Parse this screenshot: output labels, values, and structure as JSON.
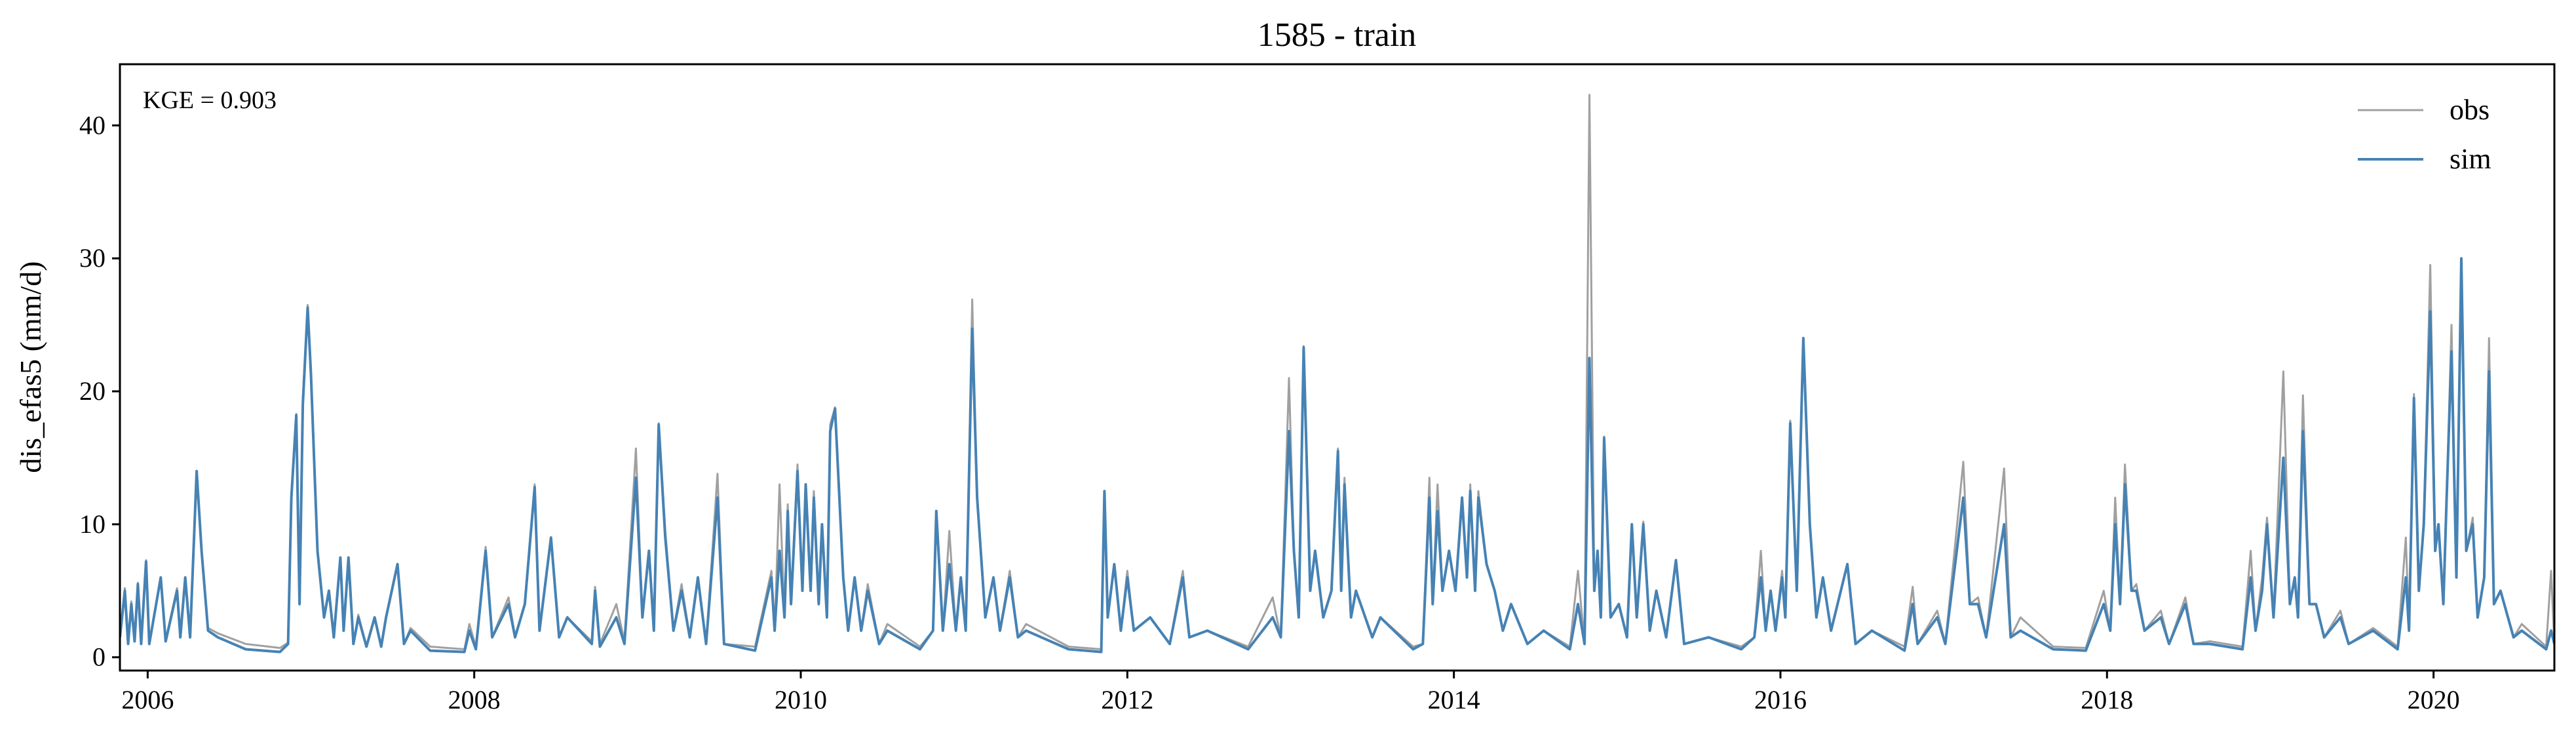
{
  "chart_data": {
    "type": "line",
    "title": "1585 - train",
    "ylabel": "dis_efas5 (mm/d)",
    "annotation": "KGE = 0.903",
    "legend": "upper right",
    "xlim": [
      2005.83,
      2020.74
    ],
    "xticks": [
      2006,
      2008,
      2010,
      2012,
      2014,
      2016,
      2018,
      2020
    ],
    "ylim": [
      -1,
      44.6
    ],
    "yticks": [
      0,
      10,
      20,
      30,
      40
    ],
    "x": [
      2005.83,
      2005.86,
      2005.88,
      2005.9,
      2005.92,
      2005.94,
      2005.96,
      2005.99,
      2006.01,
      2006.08,
      2006.11,
      2006.18,
      2006.2,
      2006.23,
      2006.26,
      2006.3,
      2006.33,
      2006.37,
      2006.43,
      2006.6,
      2006.81,
      2006.86,
      2006.88,
      2006.91,
      2006.93,
      2006.95,
      2006.98,
      2007.0,
      2007.04,
      2007.08,
      2007.11,
      2007.14,
      2007.18,
      2007.2,
      2007.23,
      2007.26,
      2007.29,
      2007.34,
      2007.39,
      2007.43,
      2007.46,
      2007.53,
      2007.57,
      2007.61,
      2007.73,
      2007.94,
      2007.97,
      2008.01,
      2008.07,
      2008.11,
      2008.21,
      2008.25,
      2008.31,
      2008.37,
      2008.4,
      2008.47,
      2008.52,
      2008.57,
      2008.72,
      2008.74,
      2008.77,
      2008.87,
      2008.92,
      2008.99,
      2009.03,
      2009.07,
      2009.1,
      2009.13,
      2009.17,
      2009.22,
      2009.27,
      2009.32,
      2009.37,
      2009.42,
      2009.49,
      2009.53,
      2009.72,
      2009.82,
      2009.84,
      2009.87,
      2009.9,
      2009.92,
      2009.94,
      2009.98,
      2010.01,
      2010.03,
      2010.06,
      2010.08,
      2010.11,
      2010.13,
      2010.16,
      2010.18,
      2010.21,
      2010.26,
      2010.29,
      2010.33,
      2010.37,
      2010.41,
      2010.48,
      2010.53,
      2010.73,
      2010.81,
      2010.83,
      2010.87,
      2010.91,
      2010.95,
      2010.98,
      2011.01,
      2011.05,
      2011.08,
      2011.13,
      2011.18,
      2011.22,
      2011.28,
      2011.33,
      2011.38,
      2011.64,
      2011.84,
      2011.86,
      2011.88,
      2011.92,
      2011.96,
      2012.0,
      2012.04,
      2012.14,
      2012.26,
      2012.34,
      2012.38,
      2012.49,
      2012.74,
      2012.89,
      2012.94,
      2012.99,
      2013.02,
      2013.05,
      2013.08,
      2013.12,
      2013.15,
      2013.2,
      2013.25,
      2013.29,
      2013.31,
      2013.33,
      2013.37,
      2013.4,
      2013.5,
      2013.55,
      2013.75,
      2013.81,
      2013.85,
      2013.87,
      2013.9,
      2013.93,
      2013.97,
      2014.01,
      2014.05,
      2014.08,
      2014.1,
      2014.13,
      2014.15,
      2014.2,
      2014.25,
      2014.3,
      2014.35,
      2014.45,
      2014.55,
      2014.71,
      2014.76,
      2014.8,
      2014.83,
      2014.86,
      2014.88,
      2014.9,
      2014.92,
      2014.96,
      2015.01,
      2015.06,
      2015.09,
      2015.12,
      2015.16,
      2015.2,
      2015.24,
      2015.3,
      2015.36,
      2015.41,
      2015.56,
      2015.76,
      2015.84,
      2015.88,
      2015.91,
      2015.94,
      2015.97,
      2016.01,
      2016.03,
      2016.06,
      2016.1,
      2016.14,
      2016.18,
      2016.22,
      2016.26,
      2016.31,
      2016.41,
      2016.46,
      2016.56,
      2016.76,
      2016.81,
      2016.84,
      2016.96,
      2017.01,
      2017.12,
      2017.16,
      2017.21,
      2017.26,
      2017.37,
      2017.41,
      2017.47,
      2017.67,
      2017.87,
      2017.98,
      2018.02,
      2018.05,
      2018.08,
      2018.11,
      2018.15,
      2018.18,
      2018.23,
      2018.33,
      2018.38,
      2018.48,
      2018.53,
      2018.63,
      2018.83,
      2018.88,
      2018.91,
      2018.95,
      2018.98,
      2019.02,
      2019.08,
      2019.12,
      2019.15,
      2019.17,
      2019.2,
      2019.24,
      2019.28,
      2019.33,
      2019.43,
      2019.48,
      2019.63,
      2019.78,
      2019.83,
      2019.85,
      2019.88,
      2019.91,
      2019.94,
      2019.98,
      2020.01,
      2020.03,
      2020.06,
      2020.08,
      2020.11,
      2020.14,
      2020.17,
      2020.2,
      2020.24,
      2020.27,
      2020.31,
      2020.34,
      2020.37,
      2020.41,
      2020.49,
      2020.54,
      2020.69,
      2020.72,
      2020.74
    ],
    "series": [
      {
        "name": "obs",
        "color": "#a0a0a0",
        "values": [
          1.5,
          5.2,
          1,
          4.2,
          1.2,
          5.6,
          1,
          7.3,
          1,
          6,
          1.3,
          5.2,
          1.5,
          5.8,
          1.5,
          14,
          8,
          2.2,
          1.8,
          1,
          0.7,
          1.1,
          12.2,
          18.3,
          4,
          19.5,
          26.5,
          21.5,
          8,
          3,
          5,
          1.5,
          7.5,
          2,
          7.5,
          1,
          3.2,
          0.8,
          3,
          0.8,
          3,
          7,
          1,
          2.2,
          0.8,
          0.6,
          2.5,
          0.8,
          8.3,
          1.5,
          4.5,
          1.6,
          4,
          13,
          2,
          9,
          1.5,
          3,
          1.2,
          5.3,
          1,
          4,
          1.2,
          15.7,
          3,
          8,
          2,
          17.6,
          9.5,
          2,
          5.5,
          1.5,
          6,
          1,
          13.8,
          1,
          0.8,
          6.5,
          2,
          13,
          3,
          11.5,
          4,
          14.5,
          5,
          13,
          5,
          12.5,
          4,
          10,
          3,
          17.5,
          18.8,
          6,
          2,
          6,
          2,
          5.5,
          1,
          2.5,
          0.8,
          2,
          11,
          2,
          9.5,
          2,
          6,
          2,
          26.9,
          12,
          3,
          6,
          2,
          6.5,
          1.5,
          2.5,
          0.8,
          0.6,
          12.5,
          3,
          7,
          2,
          6.5,
          2,
          3,
          1,
          6.5,
          1.5,
          2,
          0.8,
          4.5,
          1.5,
          21,
          8,
          3,
          23.4,
          5,
          8,
          3,
          5,
          15.7,
          5,
          13.5,
          3,
          5,
          1.5,
          3,
          0.8,
          1,
          13.5,
          4,
          13,
          5,
          8,
          5,
          12,
          6,
          13,
          5,
          12.5,
          7,
          5,
          2,
          4,
          1,
          2,
          0.8,
          6.5,
          1,
          42.3,
          5,
          8,
          3,
          16.6,
          3,
          4,
          1.5,
          10,
          3,
          10.2,
          2,
          5,
          1.5,
          7.3,
          1,
          1.5,
          0.8,
          1.5,
          8,
          2,
          5,
          2,
          6.5,
          3,
          17.8,
          5,
          24,
          10,
          3,
          6,
          2,
          7,
          1,
          2,
          0.8,
          5.3,
          1,
          3.5,
          1,
          14.7,
          4,
          4.5,
          1.5,
          14.2,
          1.5,
          3,
          0.8,
          0.7,
          5,
          2,
          12,
          4,
          14.5,
          5,
          5.5,
          2,
          3.5,
          1,
          4.5,
          1,
          1.2,
          0.8,
          8,
          2,
          6,
          10.5,
          3,
          21.5,
          4,
          6,
          3,
          19.7,
          4,
          4,
          1.5,
          3.5,
          1,
          2.2,
          0.8,
          9,
          2,
          19.8,
          5,
          10,
          29.5,
          8,
          10,
          4,
          12,
          25,
          6,
          29.8,
          8,
          10.5,
          3,
          6,
          24,
          4,
          5,
          1.5,
          2.5,
          0.8,
          6.5,
          1
        ]
      },
      {
        "name": "sim",
        "color": "#4682b4",
        "values": [
          1.5,
          5,
          1,
          4,
          1.2,
          5.5,
          1,
          7.2,
          1,
          6,
          1.2,
          5,
          1.5,
          6,
          1.5,
          14,
          8,
          2,
          1.5,
          0.6,
          0.4,
          1,
          12,
          18.2,
          4,
          19,
          26.3,
          21.3,
          8,
          3,
          5,
          1.5,
          7.5,
          2,
          7.5,
          1,
          3,
          0.8,
          3,
          0.8,
          3,
          7,
          1,
          2,
          0.5,
          0.4,
          2,
          0.6,
          8,
          1.5,
          4,
          1.5,
          4,
          12.8,
          2,
          9,
          1.5,
          3,
          1,
          5,
          0.8,
          3,
          1,
          13.5,
          3,
          8,
          2,
          17.5,
          9,
          2,
          5,
          1.5,
          6,
          1,
          12,
          1,
          0.5,
          6,
          2,
          8,
          3,
          11,
          4,
          14,
          5,
          13,
          5,
          12,
          4,
          10,
          3,
          17,
          18.7,
          6,
          2,
          6,
          2,
          5,
          1,
          2,
          0.6,
          2,
          11,
          2,
          7,
          2,
          6,
          2,
          24.7,
          12,
          3,
          6,
          2,
          6,
          1.5,
          2,
          0.6,
          0.4,
          12.5,
          3,
          7,
          2,
          6,
          2,
          3,
          1,
          6,
          1.5,
          2,
          0.6,
          3,
          1.5,
          17,
          8,
          3,
          23.3,
          5,
          8,
          3,
          5,
          15.5,
          5,
          13,
          3,
          5,
          1.5,
          3,
          0.6,
          1,
          12,
          4,
          11,
          5,
          8,
          5,
          12,
          6,
          12.5,
          5,
          12,
          7,
          5,
          2,
          4,
          1,
          2,
          0.6,
          4,
          1,
          22.5,
          5,
          8,
          3,
          16.5,
          3,
          4,
          1.5,
          10,
          3,
          10,
          2,
          5,
          1.5,
          7.3,
          1,
          1.5,
          0.6,
          1.5,
          6,
          2,
          5,
          2,
          6,
          3,
          17.6,
          5,
          24,
          10,
          3,
          6,
          2,
          7,
          1,
          2,
          0.5,
          4,
          1,
          3,
          1,
          12,
          4,
          4,
          1.5,
          10,
          1.5,
          2,
          0.6,
          0.5,
          4,
          2,
          10,
          4,
          13,
          5,
          5,
          2,
          3,
          1,
          4,
          1,
          1,
          0.6,
          6,
          2,
          5,
          10,
          3,
          15,
          4,
          6,
          3,
          17,
          4,
          4,
          1.5,
          3,
          1,
          2,
          0.6,
          6,
          2,
          19.5,
          5,
          10,
          26,
          8,
          10,
          4,
          12,
          23,
          6,
          30,
          8,
          10,
          3,
          6,
          21.5,
          4,
          5,
          1.5,
          2,
          0.6,
          2,
          1
        ]
      }
    ]
  }
}
